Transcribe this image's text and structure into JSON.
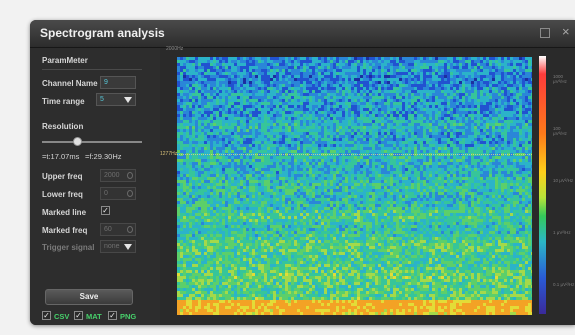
{
  "window": {
    "title": "Spectrogram analysis"
  },
  "panel": {
    "heading": "ParamMeter",
    "channel_name_label": "Channel Name",
    "channel_name_value": "9",
    "time_range_label": "Time range",
    "time_range_value": "5",
    "resolution_label": "Resolution",
    "resolution_level": 0.35,
    "time_resolution": "=t:17.07ms",
    "freq_resolution": "=f:29.30Hz",
    "upper_freq_label": "Upper freq",
    "upper_freq_value": "2000",
    "lower_freq_label": "Lower freq",
    "lower_freq_value": "0",
    "marked_line_label": "Marked line",
    "marked_line_checked": true,
    "marked_freq_label": "Marked freq",
    "marked_freq_value": "60",
    "trigger_signal_label": "Trigger signal",
    "trigger_signal_value": "none",
    "save_label": "Save",
    "formats": [
      {
        "label": "CSV",
        "checked": true
      },
      {
        "label": "MAT",
        "checked": true
      },
      {
        "label": "PNG",
        "checked": true
      }
    ]
  },
  "plot": {
    "top_label": "2000Hz",
    "marker_label": "1277Hz"
  },
  "colorbar": {
    "labels": [
      "1000 μV²/Hz",
      "100 μV²/Hz",
      "10 μV²/Hz",
      "1 μV²/Hz",
      "0.1 μV²/Hz"
    ]
  },
  "colors": {
    "accent_green": "#47d06b",
    "value_cyan": "#57c7d8"
  }
}
